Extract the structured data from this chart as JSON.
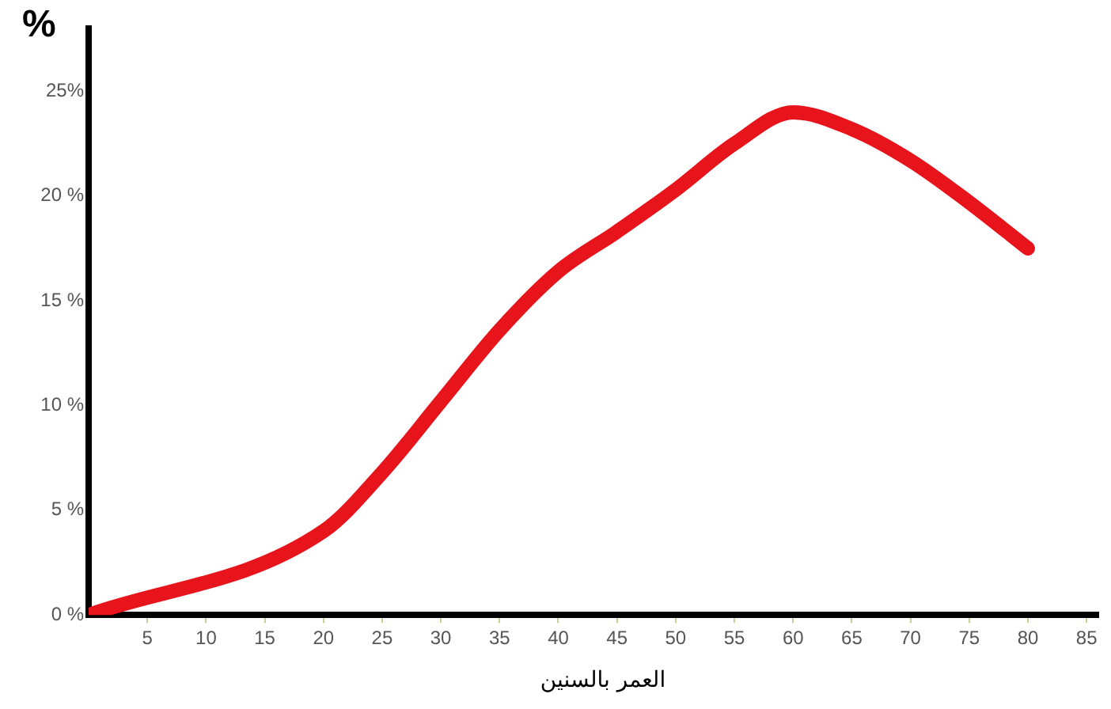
{
  "chart_data": {
    "type": "line",
    "ylabel": "%",
    "xlabel": "العمر بالسنين",
    "x": [
      0,
      20,
      25,
      30,
      35,
      40,
      45,
      50,
      55,
      60,
      65,
      70,
      75,
      80
    ],
    "series": [
      {
        "color": "#e8141c",
        "values": [
          0,
          4,
          6.8,
          10.2,
          13.6,
          16.4,
          18.3,
          20.3,
          22.5,
          24,
          23.2,
          21.7,
          19.7,
          17.5
        ]
      }
    ],
    "xlim": [
      0,
      86
    ],
    "xticks": [
      5,
      10,
      15,
      20,
      25,
      30,
      35,
      40,
      45,
      50,
      55,
      60,
      65,
      70,
      75,
      80,
      85
    ],
    "ylim": [
      0,
      28
    ],
    "yticks": [
      {
        "value": 0,
        "label": "0 %"
      },
      {
        "value": 5,
        "label": "5 %"
      },
      {
        "value": 10,
        "label": "10 %"
      },
      {
        "value": 15,
        "label": "15 %"
      },
      {
        "value": 20,
        "label": "20 %"
      },
      {
        "value": 25,
        "label": "25%"
      }
    ],
    "grid": false,
    "legend": false,
    "marker": "none",
    "line_style": "solid"
  }
}
